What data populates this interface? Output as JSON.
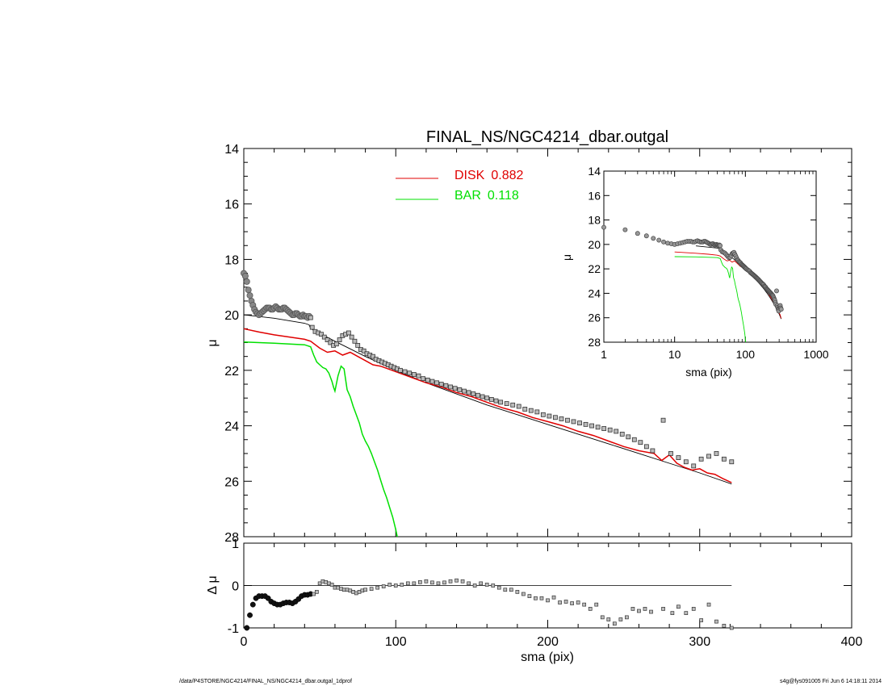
{
  "chart_data": [
    {
      "type": "scatter",
      "panel": "main",
      "title": "FINAL_NS/NGC4214_dbar.outgal",
      "xlabel": "",
      "ylabel": "μ",
      "xlim": [
        0,
        400
      ],
      "ylim": [
        28,
        14
      ],
      "y_reversed": true,
      "yticks": [
        "14",
        "16",
        "18",
        "20",
        "22",
        "24",
        "26",
        "28"
      ],
      "legend": {
        "position": "top-center",
        "entries": [
          {
            "name": "DISK",
            "value": "0.882",
            "color": "#e00000"
          },
          {
            "name": "BAR",
            "value": "0.118",
            "color": "#00e000"
          }
        ]
      },
      "data_points": {
        "x": [
          0,
          1,
          2,
          3,
          4,
          5,
          6,
          7,
          8,
          9,
          10,
          11,
          12,
          13,
          14,
          15,
          16,
          17,
          18,
          19,
          20,
          21,
          22,
          23,
          24,
          25,
          26,
          27,
          28,
          29,
          30,
          31,
          32,
          33,
          34,
          35,
          36,
          37,
          38,
          39,
          40,
          41,
          42,
          43,
          44,
          45,
          47,
          49,
          51,
          53,
          55,
          57,
          59,
          61,
          63,
          65,
          67,
          69,
          71,
          73,
          75,
          77,
          79,
          81,
          83,
          85,
          87,
          89,
          91,
          93,
          95,
          97,
          99,
          101,
          103,
          106,
          109,
          112,
          115,
          118,
          121,
          124,
          127,
          130,
          133,
          136,
          139,
          142,
          145,
          148,
          151,
          154,
          157,
          160,
          163,
          166,
          169,
          173,
          177,
          181,
          185,
          189,
          193,
          197,
          201,
          205,
          209,
          213,
          217,
          221,
          225,
          229,
          233,
          237,
          241,
          245,
          249,
          253,
          257,
          261,
          265,
          269,
          276,
          281,
          286,
          291,
          296,
          301,
          306,
          311,
          316,
          321
        ],
        "y": [
          18.5,
          18.6,
          18.8,
          19.1,
          19.3,
          19.5,
          19.65,
          19.8,
          19.9,
          19.95,
          20.0,
          19.95,
          19.9,
          19.85,
          19.8,
          19.75,
          19.75,
          19.75,
          19.8,
          19.8,
          19.75,
          19.7,
          19.75,
          19.8,
          19.8,
          19.8,
          19.75,
          19.75,
          19.8,
          19.85,
          19.9,
          19.95,
          20.0,
          20.0,
          19.95,
          19.95,
          20.0,
          20.05,
          20.05,
          20.0,
          20.05,
          20.05,
          20.1,
          20.05,
          20.1,
          20.45,
          20.6,
          20.65,
          20.7,
          20.8,
          20.9,
          21.0,
          21.1,
          21.05,
          20.9,
          20.75,
          20.7,
          20.65,
          20.8,
          20.95,
          21.1,
          21.25,
          21.3,
          21.4,
          21.45,
          21.5,
          21.6,
          21.65,
          21.7,
          21.75,
          21.8,
          21.85,
          21.9,
          21.95,
          22.0,
          22.05,
          22.1,
          22.15,
          22.2,
          22.3,
          22.35,
          22.4,
          22.45,
          22.5,
          22.55,
          22.6,
          22.65,
          22.7,
          22.75,
          22.8,
          22.85,
          22.9,
          22.95,
          23.0,
          23.05,
          23.1,
          23.15,
          23.2,
          23.25,
          23.3,
          23.4,
          23.45,
          23.5,
          23.6,
          23.65,
          23.7,
          23.75,
          23.8,
          23.85,
          23.9,
          23.95,
          24.0,
          24.05,
          24.1,
          24.15,
          24.2,
          24.3,
          24.4,
          24.5,
          24.6,
          24.75,
          24.9,
          23.8,
          25.0,
          25.15,
          25.3,
          25.45,
          25.2,
          25.1,
          25.0,
          25.2,
          25.3
        ]
      },
      "model_total": {
        "x": [
          0,
          20,
          40,
          43,
          44,
          60,
          80,
          100,
          120,
          140,
          160,
          180,
          200,
          220,
          240,
          260,
          280,
          300,
          321
        ],
        "y": [
          20.0,
          20.12,
          20.3,
          20.36,
          20.5,
          20.95,
          21.5,
          22.0,
          22.45,
          22.85,
          23.25,
          23.6,
          23.95,
          24.3,
          24.65,
          25.0,
          25.35,
          25.7,
          26.1
        ]
      },
      "series": [
        {
          "name": "DISK",
          "color": "#e00000",
          "x": [
            0,
            10,
            20,
            30,
            40,
            44,
            50,
            55,
            60,
            65,
            70,
            75,
            80,
            85,
            90,
            95,
            100,
            110,
            120,
            130,
            140,
            150,
            160,
            170,
            180,
            190,
            200,
            210,
            220,
            230,
            240,
            250,
            260,
            270,
            275,
            280,
            285,
            290,
            295,
            300,
            305,
            310,
            315,
            321
          ],
          "y": [
            20.5,
            20.62,
            20.72,
            20.8,
            20.88,
            20.95,
            21.2,
            21.35,
            21.3,
            21.45,
            21.35,
            21.5,
            21.65,
            21.8,
            21.85,
            21.95,
            22.05,
            22.25,
            22.45,
            22.6,
            22.8,
            22.95,
            23.15,
            23.35,
            23.5,
            23.7,
            23.85,
            24.0,
            24.2,
            24.35,
            24.55,
            24.75,
            24.9,
            25.0,
            25.25,
            25.05,
            25.35,
            25.5,
            25.6,
            25.55,
            25.7,
            25.75,
            25.9,
            26.05
          ]
        },
        {
          "name": "BAR",
          "color": "#00e000",
          "x": [
            0,
            10,
            20,
            30,
            40,
            44,
            46,
            48,
            50,
            52,
            54,
            56,
            58,
            59,
            60,
            62,
            64,
            66,
            68,
            70,
            72,
            74,
            76,
            78,
            80,
            82,
            84,
            86,
            88,
            90,
            92,
            94,
            96,
            98,
            100,
            101
          ],
          "y": [
            20.98,
            21.0,
            21.02,
            21.05,
            21.08,
            21.15,
            21.45,
            21.7,
            21.8,
            21.9,
            21.95,
            22.1,
            22.4,
            22.6,
            22.75,
            22.2,
            21.85,
            21.95,
            22.7,
            22.95,
            23.3,
            23.6,
            23.9,
            24.3,
            24.55,
            24.75,
            25.0,
            25.3,
            25.6,
            25.95,
            26.3,
            26.6,
            26.95,
            27.3,
            27.75,
            28.0
          ]
        }
      ]
    },
    {
      "type": "scatter",
      "panel": "inset",
      "title": "",
      "xlabel": "sma (pix)",
      "ylabel": "μ",
      "x_scale": "log",
      "xlim": [
        1,
        1000
      ],
      "ylim": [
        28,
        14
      ],
      "xticks": [
        "1",
        "10",
        "100",
        "1000"
      ],
      "yticks": [
        "14",
        "16",
        "18",
        "20",
        "22",
        "24",
        "26",
        "28"
      ]
    },
    {
      "type": "scatter",
      "panel": "residual",
      "title": "",
      "xlabel": "sma (pix)",
      "ylabel": "Δ μ",
      "xlim": [
        0,
        400
      ],
      "ylim": [
        -1,
        1
      ],
      "xticks": [
        "0",
        "100",
        "200",
        "300",
        "400"
      ],
      "yticks": [
        "1",
        "0",
        "-1"
      ],
      "zero_line_xmax": 321,
      "residuals": {
        "x": [
          2,
          4,
          6,
          8,
          10,
          12,
          14,
          16,
          18,
          20,
          22,
          24,
          26,
          28,
          30,
          32,
          34,
          36,
          38,
          40,
          42,
          44,
          46,
          48,
          50,
          52,
          54,
          56,
          58,
          60,
          62,
          64,
          66,
          68,
          70,
          72,
          74,
          76,
          78,
          80,
          84,
          88,
          92,
          96,
          100,
          104,
          108,
          112,
          116,
          120,
          124,
          128,
          132,
          136,
          140,
          144,
          148,
          152,
          156,
          160,
          164,
          168,
          172,
          176,
          180,
          184,
          188,
          192,
          196,
          200,
          204,
          208,
          212,
          216,
          220,
          224,
          228,
          232,
          236,
          240,
          244,
          248,
          252,
          256,
          260,
          264,
          268,
          276,
          282,
          286,
          291,
          296,
          301,
          306,
          311,
          316,
          321
        ],
        "y": [
          -1.0,
          -0.7,
          -0.45,
          -0.3,
          -0.25,
          -0.25,
          -0.25,
          -0.3,
          -0.38,
          -0.42,
          -0.45,
          -0.45,
          -0.42,
          -0.4,
          -0.4,
          -0.42,
          -0.38,
          -0.32,
          -0.25,
          -0.22,
          -0.22,
          -0.2,
          -0.2,
          -0.15,
          0.05,
          0.1,
          0.08,
          0.05,
          0.02,
          -0.05,
          -0.05,
          -0.08,
          -0.1,
          -0.1,
          -0.12,
          -0.15,
          -0.18,
          -0.15,
          -0.12,
          -0.1,
          -0.08,
          -0.05,
          -0.02,
          0.02,
          0.0,
          0.02,
          0.05,
          0.05,
          0.08,
          0.1,
          0.07,
          0.05,
          0.07,
          0.1,
          0.12,
          0.1,
          0.05,
          0.0,
          0.05,
          0.02,
          0.0,
          -0.05,
          -0.1,
          -0.1,
          -0.15,
          -0.2,
          -0.25,
          -0.3,
          -0.3,
          -0.35,
          -0.28,
          -0.4,
          -0.38,
          -0.42,
          -0.4,
          -0.45,
          -0.55,
          -0.45,
          -0.75,
          -0.8,
          -0.9,
          -0.8,
          -0.75,
          -0.55,
          -0.6,
          -0.55,
          -0.62,
          -0.55,
          -0.65,
          -0.5,
          -0.65,
          -0.55,
          -0.82,
          -0.45,
          -0.85,
          -0.95,
          -1.0
        ]
      }
    }
  ],
  "footer": {
    "left": "/data/P4STORE/NGC4214/FINAL_NS/NGC4214_dbar.outgal_1dprof",
    "right": "s4g@fys091005  Fri Jun  6 14:18:11 2014"
  }
}
